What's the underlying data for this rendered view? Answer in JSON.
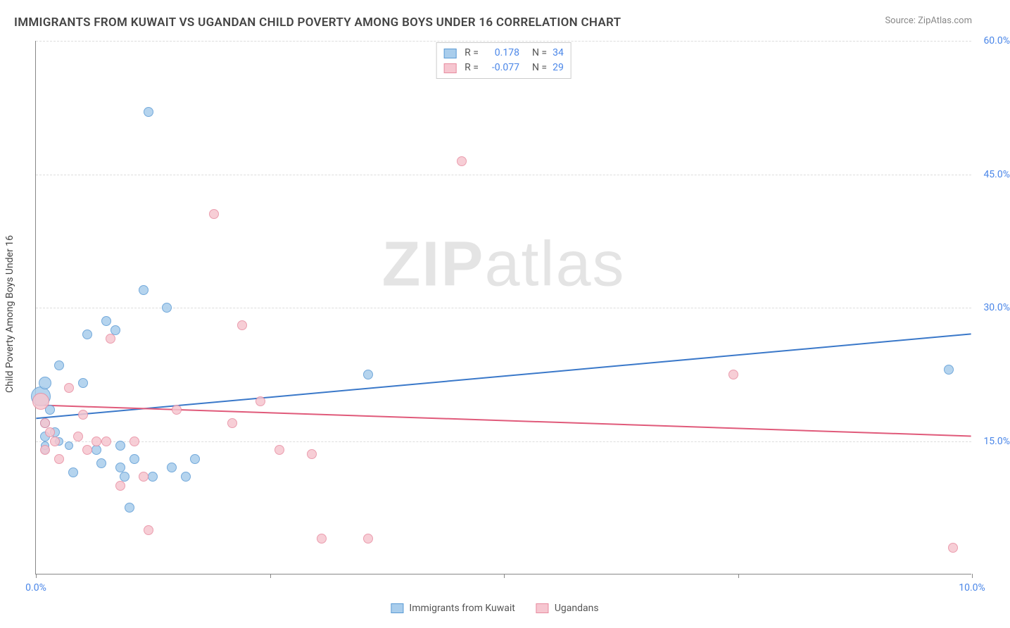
{
  "title": "IMMIGRANTS FROM KUWAIT VS UGANDAN CHILD POVERTY AMONG BOYS UNDER 16 CORRELATION CHART",
  "source_label": "Source:",
  "source_value": "ZipAtlas.com",
  "y_axis_label": "Child Poverty Among Boys Under 16",
  "watermark_bold": "ZIP",
  "watermark_rest": "atlas",
  "chart": {
    "type": "scatter",
    "background_color": "#ffffff",
    "grid_color": "#dddddd",
    "axis_color": "#888888",
    "label_color": "#4a86e8",
    "xlim": [
      0,
      10
    ],
    "ylim": [
      0,
      60
    ],
    "x_ticks": [
      0,
      2.5,
      5,
      7.5,
      10
    ],
    "x_tick_labels": [
      "0.0%",
      "",
      "",
      "",
      "10.0%"
    ],
    "y_gridlines": [
      15,
      30,
      45,
      60
    ],
    "y_tick_labels": [
      "15.0%",
      "30.0%",
      "45.0%",
      "60.0%"
    ],
    "series": [
      {
        "id": "kuwait",
        "label": "Immigrants from Kuwait",
        "fill": "#a9cdec",
        "stroke": "#5b9bd5",
        "line_color": "#3a78c9",
        "r_value": "0.178",
        "n_value": "34",
        "trend": {
          "x1": 0.0,
          "y1": 17.5,
          "x2": 10.0,
          "y2": 27.0
        },
        "points": [
          {
            "x": 0.05,
            "y": 20.0,
            "r": 14
          },
          {
            "x": 0.1,
            "y": 21.5,
            "r": 9
          },
          {
            "x": 0.1,
            "y": 17.0,
            "r": 7
          },
          {
            "x": 0.1,
            "y": 15.5,
            "r": 7
          },
          {
            "x": 0.1,
            "y": 14.0,
            "r": 6
          },
          {
            "x": 0.2,
            "y": 16.0,
            "r": 7
          },
          {
            "x": 0.15,
            "y": 18.5,
            "r": 7
          },
          {
            "x": 0.1,
            "y": 14.5,
            "r": 6
          },
          {
            "x": 0.25,
            "y": 15.0,
            "r": 6
          },
          {
            "x": 0.25,
            "y": 23.5,
            "r": 7
          },
          {
            "x": 0.35,
            "y": 14.5,
            "r": 6
          },
          {
            "x": 0.4,
            "y": 11.5,
            "r": 7
          },
          {
            "x": 0.5,
            "y": 21.5,
            "r": 7
          },
          {
            "x": 0.55,
            "y": 27.0,
            "r": 7
          },
          {
            "x": 0.65,
            "y": 14.0,
            "r": 7
          },
          {
            "x": 0.7,
            "y": 12.5,
            "r": 7
          },
          {
            "x": 0.75,
            "y": 28.5,
            "r": 7
          },
          {
            "x": 0.85,
            "y": 27.5,
            "r": 7
          },
          {
            "x": 0.9,
            "y": 14.5,
            "r": 7
          },
          {
            "x": 0.9,
            "y": 12.0,
            "r": 7
          },
          {
            "x": 0.95,
            "y": 11.0,
            "r": 7
          },
          {
            "x": 1.0,
            "y": 7.5,
            "r": 7
          },
          {
            "x": 1.05,
            "y": 13.0,
            "r": 7
          },
          {
            "x": 1.15,
            "y": 32.0,
            "r": 7
          },
          {
            "x": 1.2,
            "y": 52.0,
            "r": 7
          },
          {
            "x": 1.25,
            "y": 11.0,
            "r": 7
          },
          {
            "x": 1.4,
            "y": 30.0,
            "r": 7
          },
          {
            "x": 1.45,
            "y": 12.0,
            "r": 7
          },
          {
            "x": 1.6,
            "y": 11.0,
            "r": 7
          },
          {
            "x": 1.7,
            "y": 13.0,
            "r": 7
          },
          {
            "x": 3.55,
            "y": 22.5,
            "r": 7
          },
          {
            "x": 9.75,
            "y": 23.0,
            "r": 7
          }
        ]
      },
      {
        "id": "ugandans",
        "label": "Ugandans",
        "fill": "#f6c6d0",
        "stroke": "#e88ca0",
        "line_color": "#e05a7a",
        "r_value": "-0.077",
        "n_value": "29",
        "trend": {
          "x1": 0.0,
          "y1": 19.0,
          "x2": 10.0,
          "y2": 15.5
        },
        "points": [
          {
            "x": 0.05,
            "y": 19.5,
            "r": 12
          },
          {
            "x": 0.1,
            "y": 14.0,
            "r": 7
          },
          {
            "x": 0.1,
            "y": 17.0,
            "r": 7
          },
          {
            "x": 0.15,
            "y": 16.0,
            "r": 7
          },
          {
            "x": 0.2,
            "y": 15.0,
            "r": 7
          },
          {
            "x": 0.25,
            "y": 13.0,
            "r": 7
          },
          {
            "x": 0.35,
            "y": 21.0,
            "r": 7
          },
          {
            "x": 0.45,
            "y": 15.5,
            "r": 7
          },
          {
            "x": 0.5,
            "y": 18.0,
            "r": 7
          },
          {
            "x": 0.55,
            "y": 14.0,
            "r": 7
          },
          {
            "x": 0.65,
            "y": 15.0,
            "r": 7
          },
          {
            "x": 0.75,
            "y": 15.0,
            "r": 7
          },
          {
            "x": 0.8,
            "y": 26.5,
            "r": 7
          },
          {
            "x": 0.9,
            "y": 10.0,
            "r": 7
          },
          {
            "x": 1.05,
            "y": 15.0,
            "r": 7
          },
          {
            "x": 1.15,
            "y": 11.0,
            "r": 7
          },
          {
            "x": 1.2,
            "y": 5.0,
            "r": 7
          },
          {
            "x": 1.5,
            "y": 18.5,
            "r": 7
          },
          {
            "x": 1.9,
            "y": 40.5,
            "r": 7
          },
          {
            "x": 2.1,
            "y": 17.0,
            "r": 7
          },
          {
            "x": 2.2,
            "y": 28.0,
            "r": 7
          },
          {
            "x": 2.4,
            "y": 19.5,
            "r": 7
          },
          {
            "x": 2.6,
            "y": 14.0,
            "r": 7
          },
          {
            "x": 2.95,
            "y": 13.5,
            "r": 7
          },
          {
            "x": 3.05,
            "y": 4.0,
            "r": 7
          },
          {
            "x": 3.55,
            "y": 4.0,
            "r": 7
          },
          {
            "x": 4.55,
            "y": 46.5,
            "r": 7
          },
          {
            "x": 7.45,
            "y": 22.5,
            "r": 7
          },
          {
            "x": 9.8,
            "y": 3.0,
            "r": 7
          }
        ]
      }
    ]
  }
}
